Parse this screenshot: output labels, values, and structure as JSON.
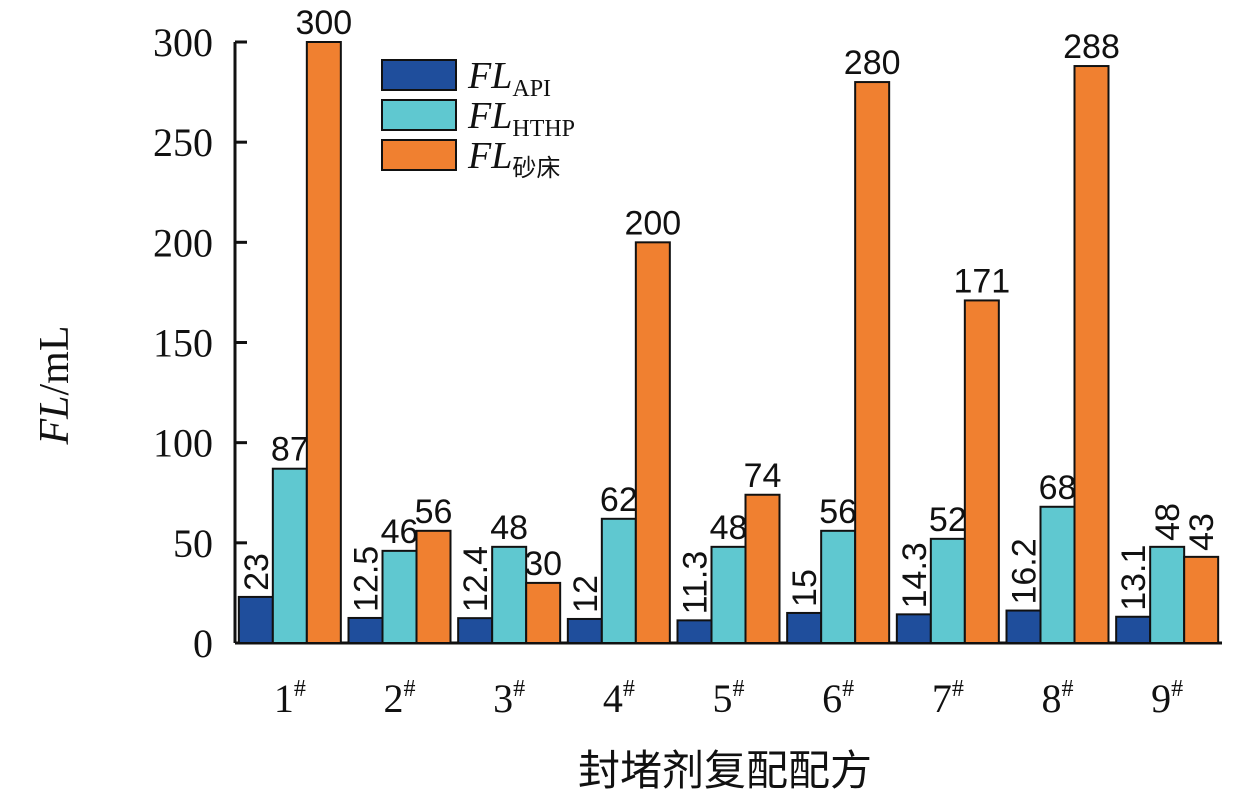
{
  "chart_data": {
    "type": "bar",
    "xlabel": "封堵剂复配配方",
    "ylabel_main": "FL",
    "ylabel_unit": "/mL",
    "ylim": [
      0,
      300
    ],
    "yticks": [
      "0",
      "50",
      "100",
      "150",
      "200",
      "250",
      "300"
    ],
    "ytick_values": [
      0,
      50,
      100,
      150,
      200,
      250,
      300
    ],
    "categories": [
      "1",
      "2",
      "3",
      "4",
      "5",
      "6",
      "7",
      "8",
      "9"
    ],
    "category_mark": "#",
    "legend_position": "top-left",
    "series": [
      {
        "name": "FLAPI",
        "legend_main": "FL",
        "legend_sub": "API",
        "color": "#1f4e9c",
        "values": [
          23,
          12.5,
          12.4,
          12,
          11.3,
          15,
          14.3,
          16.2,
          13.1
        ],
        "labels": [
          "23",
          "12.5",
          "12.4",
          "12",
          "11.3",
          "15",
          "14.3",
          "16.2",
          "13.1"
        ]
      },
      {
        "name": "FLHTHP",
        "legend_main": "FL",
        "legend_sub": "HTHP",
        "color": "#5fc8d0",
        "values": [
          87,
          46,
          48,
          62,
          48,
          56,
          52,
          68,
          48
        ],
        "labels": [
          "87",
          "46",
          "48",
          "62",
          "48",
          "56",
          "52",
          "68",
          "48"
        ]
      },
      {
        "name": "FL砂床",
        "legend_main": "FL",
        "legend_sub": "砂床",
        "color": "#f08030",
        "values": [
          300,
          56,
          30,
          200,
          74,
          280,
          171,
          288,
          43
        ],
        "labels": [
          "300",
          "56",
          "30",
          "200",
          "74",
          "280",
          "171",
          "288",
          "43"
        ]
      }
    ]
  }
}
